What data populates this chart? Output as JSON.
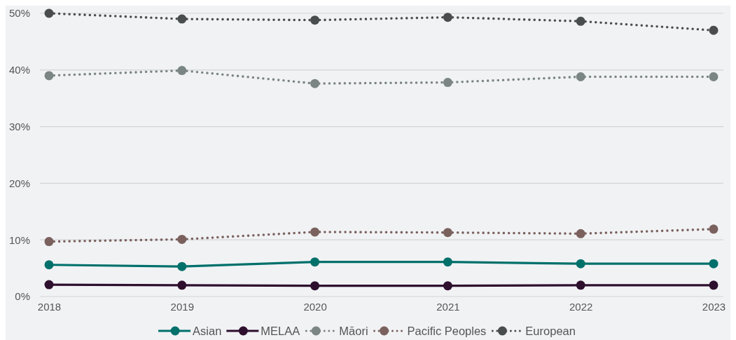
{
  "chart_data": {
    "type": "line",
    "categories": [
      "2018",
      "2019",
      "2020",
      "2021",
      "2022",
      "2023"
    ],
    "series": [
      {
        "name": "Asian",
        "color": "#00706b",
        "line_style": "solid",
        "values": [
          5.6,
          5.3,
          6.1,
          6.1,
          5.8,
          5.8
        ]
      },
      {
        "name": "MELAA",
        "color": "#2e0f2e",
        "line_style": "solid",
        "values": [
          2.1,
          2.0,
          1.9,
          1.9,
          2.0,
          2.0
        ]
      },
      {
        "name": "Māori",
        "color": "#7a8584",
        "line_style": "dotted",
        "values": [
          39.0,
          39.9,
          37.6,
          37.8,
          38.8,
          38.8
        ]
      },
      {
        "name": "Pacific Peoples",
        "color": "#7a615e",
        "line_style": "dotted",
        "values": [
          9.7,
          10.1,
          11.4,
          11.3,
          11.1,
          11.9
        ]
      },
      {
        "name": "European",
        "color": "#4a4d4d",
        "line_style": "dotted",
        "values": [
          50.0,
          49.0,
          48.8,
          49.3,
          48.6,
          47.0
        ]
      }
    ],
    "ylim": [
      0,
      50
    ],
    "yticks": [
      {
        "value": 0,
        "label": "0%"
      },
      {
        "value": 10,
        "label": "10%"
      },
      {
        "value": 20,
        "label": "20%"
      },
      {
        "value": 30,
        "label": "30%"
      },
      {
        "value": 40,
        "label": "40%"
      },
      {
        "value": 50,
        "label": "50%"
      }
    ],
    "grid": "y",
    "legend": "bottom",
    "marker": "circle"
  }
}
